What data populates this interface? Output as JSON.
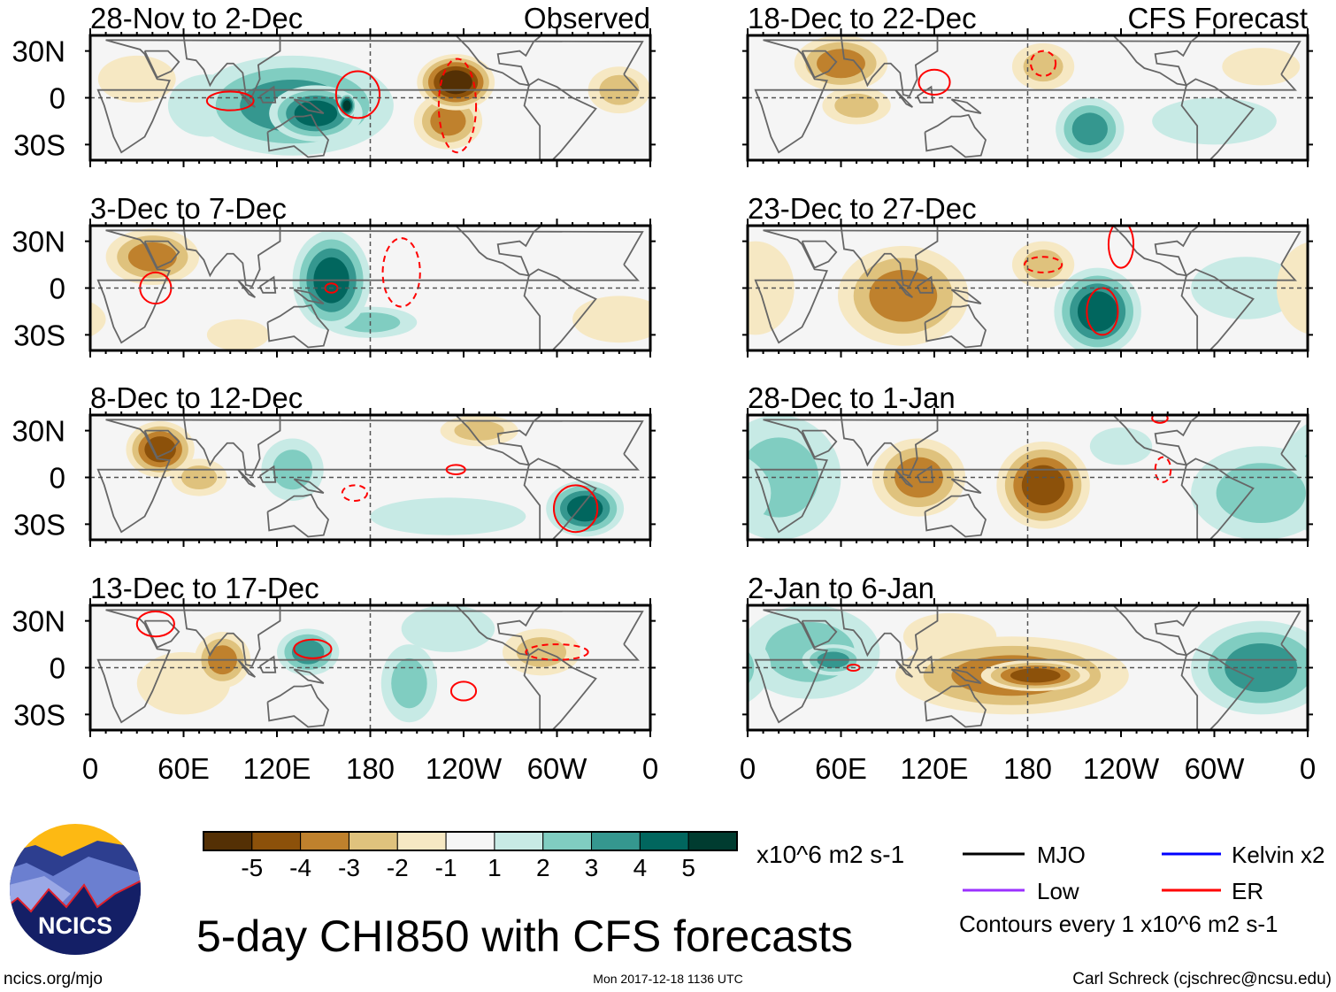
{
  "chart_data": {
    "type": "heatmap",
    "title": "5-day CHI850 with CFS forecasts",
    "units": "x10^6 m2 s-1",
    "lon_range": [
      0,
      360
    ],
    "lat_range": [
      -40,
      40
    ],
    "ylabels": [
      "30N",
      "0",
      "30S"
    ],
    "xlabels": [
      "0",
      "60E",
      "120E",
      "180",
      "120W",
      "60W",
      "0"
    ],
    "colorbar": {
      "levels": [
        "-5",
        "-4",
        "-3",
        "-2",
        "-1",
        "1",
        "2",
        "3",
        "4",
        "5"
      ],
      "colors": [
        "#543005",
        "#8c510a",
        "#bf812d",
        "#dfc27d",
        "#f6e8c3",
        "#f5f5f5",
        "#c7eae5",
        "#80cdc1",
        "#35978f",
        "#01665e",
        "#003c30"
      ]
    },
    "panels": [
      {
        "title": "28-Nov to 2-Dec",
        "tag": "Observed",
        "column": "left",
        "blobs": [
          [
            130,
            -5,
            65,
            32,
            3
          ],
          [
            145,
            -10,
            30,
            18,
            4
          ],
          [
            165,
            -5,
            6,
            8,
            5
          ],
          [
            235,
            10,
            25,
            18,
            -5
          ],
          [
            230,
            -15,
            22,
            18,
            -3
          ],
          [
            30,
            12,
            25,
            15,
            -1
          ],
          [
            340,
            5,
            20,
            15,
            -2
          ],
          [
            75,
            -5,
            25,
            20,
            1
          ]
        ],
        "contours": [
          [
            90,
            -2,
            15,
            6,
            "solid"
          ],
          [
            172,
            2,
            14,
            15,
            "solid"
          ],
          [
            236,
            -5,
            12,
            30,
            "dashed"
          ]
        ]
      },
      {
        "title": "3-Dec to 7-Dec",
        "tag": "",
        "column": "left",
        "blobs": [
          [
            40,
            20,
            30,
            18,
            -3
          ],
          [
            155,
            5,
            25,
            32,
            4
          ],
          [
            180,
            -22,
            30,
            10,
            2
          ],
          [
            95,
            -30,
            20,
            10,
            -1
          ],
          [
            340,
            -20,
            30,
            15,
            -1
          ]
        ],
        "contours": [
          [
            42,
            0,
            10,
            10,
            "solid"
          ],
          [
            200,
            10,
            12,
            22,
            "dashed"
          ],
          [
            155,
            0,
            4,
            3,
            "solid"
          ]
        ]
      },
      {
        "title": "8-Dec to 12-Dec",
        "tag": "",
        "column": "left",
        "blobs": [
          [
            45,
            18,
            22,
            18,
            -4
          ],
          [
            70,
            0,
            18,
            12,
            -2
          ],
          [
            130,
            5,
            20,
            20,
            2
          ],
          [
            318,
            -20,
            25,
            18,
            4
          ],
          [
            230,
            -25,
            50,
            12,
            1
          ],
          [
            250,
            30,
            25,
            10,
            -2
          ]
        ],
        "contours": [
          [
            312,
            -20,
            14,
            15,
            "solid"
          ],
          [
            170,
            -10,
            8,
            5,
            "dashed"
          ],
          [
            235,
            5,
            6,
            3,
            "solid"
          ]
        ]
      },
      {
        "title": "13-Dec to 17-Dec",
        "tag": "",
        "column": "left",
        "blobs": [
          [
            85,
            5,
            18,
            18,
            -3
          ],
          [
            140,
            10,
            20,
            15,
            3
          ],
          [
            205,
            -10,
            18,
            25,
            2
          ],
          [
            290,
            10,
            25,
            15,
            -2
          ],
          [
            60,
            -10,
            30,
            20,
            -1
          ],
          [
            230,
            25,
            30,
            15,
            1
          ]
        ],
        "contours": [
          [
            143,
            12,
            12,
            6,
            "solid"
          ],
          [
            240,
            -15,
            8,
            6,
            "solid"
          ],
          [
            300,
            10,
            20,
            5,
            "dashed"
          ],
          [
            42,
            28,
            12,
            8,
            "solid"
          ]
        ]
      },
      {
        "title": "18-Dec to 22-Dec",
        "tag": "CFS Forecast",
        "column": "right",
        "blobs": [
          [
            60,
            22,
            30,
            18,
            -3
          ],
          [
            70,
            -5,
            22,
            12,
            -2
          ],
          [
            220,
            -20,
            22,
            20,
            3
          ],
          [
            190,
            20,
            20,
            15,
            -2
          ],
          [
            330,
            20,
            25,
            12,
            -1
          ],
          [
            300,
            -15,
            40,
            15,
            1
          ]
        ],
        "contours": [
          [
            120,
            10,
            10,
            8,
            "solid"
          ],
          [
            190,
            22,
            8,
            8,
            "dashed"
          ]
        ]
      },
      {
        "title": "23-Dec to 27-Dec",
        "tag": "",
        "column": "right",
        "blobs": [
          [
            100,
            -5,
            42,
            32,
            -3
          ],
          [
            225,
            -15,
            28,
            28,
            4
          ],
          [
            320,
            0,
            35,
            20,
            1
          ],
          [
            190,
            15,
            20,
            15,
            -2
          ],
          [
            5,
            0,
            25,
            30,
            -1
          ]
        ],
        "contours": [
          [
            228,
            -15,
            10,
            15,
            "solid"
          ],
          [
            240,
            28,
            8,
            15,
            "solid"
          ],
          [
            190,
            15,
            12,
            5,
            "dashed"
          ]
        ]
      },
      {
        "title": "28-Dec to 1-Jan",
        "tag": "",
        "column": "right",
        "blobs": [
          [
            20,
            0,
            40,
            40,
            2
          ],
          [
            110,
            0,
            30,
            25,
            -3
          ],
          [
            190,
            -5,
            30,
            28,
            -4
          ],
          [
            330,
            -10,
            45,
            30,
            2
          ],
          [
            240,
            20,
            20,
            12,
            1
          ]
        ],
        "contours": [
          [
            267,
            5,
            5,
            8,
            "dashed"
          ],
          [
            265,
            38,
            5,
            3,
            "solid"
          ]
        ]
      },
      {
        "title": "2-Jan to 6-Jan",
        "tag": "",
        "column": "right",
        "blobs": [
          [
            40,
            10,
            45,
            30,
            2
          ],
          [
            55,
            5,
            20,
            10,
            3
          ],
          [
            170,
            -5,
            75,
            25,
            -3
          ],
          [
            185,
            -5,
            35,
            10,
            -4
          ],
          [
            330,
            0,
            45,
            30,
            3
          ],
          [
            130,
            20,
            30,
            15,
            -1
          ]
        ],
        "contours": [
          [
            68,
            0,
            4,
            2,
            "solid"
          ]
        ]
      }
    ]
  },
  "legend": {
    "items": [
      {
        "label": "MJO",
        "color": "#000000"
      },
      {
        "label": "Kelvin x2",
        "color": "#0000ff"
      },
      {
        "label": "Low",
        "color": "#9b30ff"
      },
      {
        "label": "ER",
        "color": "#ff0000"
      }
    ],
    "note": "Contours every 1 x10^6 m2 s-1"
  },
  "footer": {
    "left": "ncics.org/mjo",
    "center": "Mon 2017-12-18 1136 UTC",
    "right": "Carl Schreck (cjschrec@ncsu.edu)"
  },
  "logo": {
    "text": "NCICS"
  }
}
